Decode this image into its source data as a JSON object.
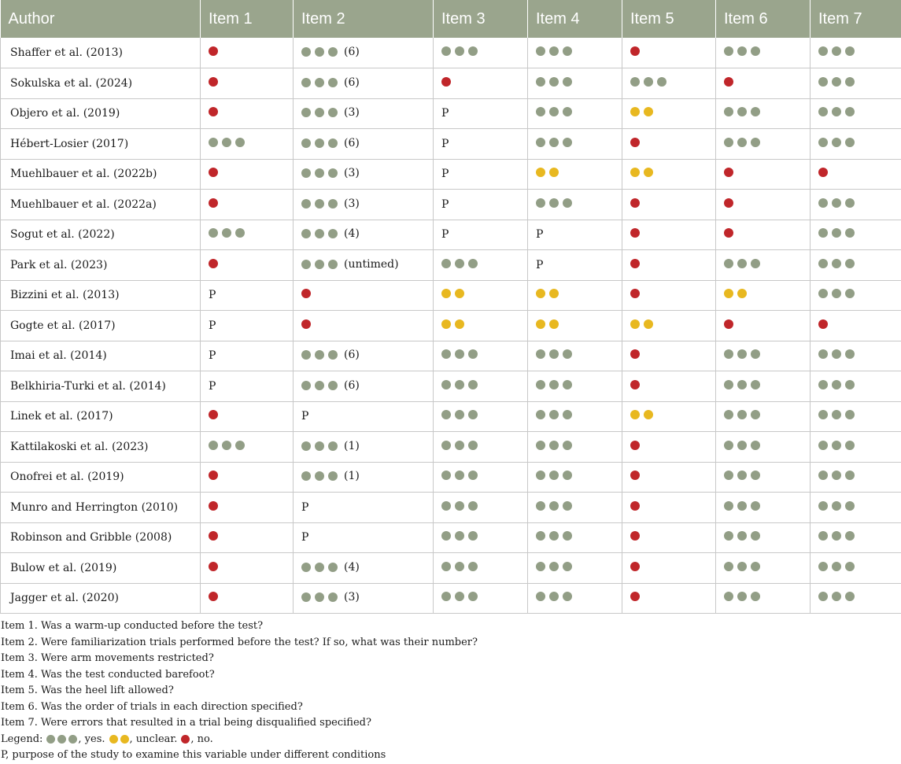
{
  "table": {
    "headers": [
      "Author",
      "Item 1",
      "Item 2",
      "Item 3",
      "Item 4",
      "Item 5",
      "Item 6",
      "Item 7"
    ],
    "rows": [
      {
        "author": "Shaffer et al. (2013)",
        "cells": [
          {
            "r": "no"
          },
          {
            "r": "yes",
            "note": "(6)"
          },
          {
            "r": "yes"
          },
          {
            "r": "yes"
          },
          {
            "r": "no"
          },
          {
            "r": "yes"
          },
          {
            "r": "yes"
          }
        ]
      },
      {
        "author": "Sokulska et al. (2024)",
        "cells": [
          {
            "r": "no"
          },
          {
            "r": "yes",
            "note": "(6)"
          },
          {
            "r": "no"
          },
          {
            "r": "yes"
          },
          {
            "r": "yes"
          },
          {
            "r": "no"
          },
          {
            "r": "yes"
          }
        ]
      },
      {
        "author": "Objero et al. (2019)",
        "cells": [
          {
            "r": "no"
          },
          {
            "r": "yes",
            "note": "(3)"
          },
          {
            "r": "P"
          },
          {
            "r": "yes"
          },
          {
            "r": "unclear"
          },
          {
            "r": "yes"
          },
          {
            "r": "yes"
          }
        ]
      },
      {
        "author": "Hébert-Losier (2017)",
        "cells": [
          {
            "r": "yes"
          },
          {
            "r": "yes",
            "note": "(6)"
          },
          {
            "r": "P"
          },
          {
            "r": "yes"
          },
          {
            "r": "no"
          },
          {
            "r": "yes"
          },
          {
            "r": "yes"
          }
        ]
      },
      {
        "author": "Muehlbauer et al. (2022b)",
        "cells": [
          {
            "r": "no"
          },
          {
            "r": "yes",
            "note": "(3)"
          },
          {
            "r": "P"
          },
          {
            "r": "unclear"
          },
          {
            "r": "unclear"
          },
          {
            "r": "no"
          },
          {
            "r": "no"
          }
        ]
      },
      {
        "author": "Muehlbauer et al. (2022a)",
        "cells": [
          {
            "r": "no"
          },
          {
            "r": "yes",
            "note": "(3)"
          },
          {
            "r": "P"
          },
          {
            "r": "yes"
          },
          {
            "r": "no"
          },
          {
            "r": "no"
          },
          {
            "r": "yes"
          }
        ]
      },
      {
        "author": "Sogut et al. (2022)",
        "cells": [
          {
            "r": "yes"
          },
          {
            "r": "yes",
            "note": "(4)"
          },
          {
            "r": "P"
          },
          {
            "r": "P"
          },
          {
            "r": "no"
          },
          {
            "r": "no"
          },
          {
            "r": "yes"
          }
        ]
      },
      {
        "author": "Park et al. (2023)",
        "cells": [
          {
            "r": "no"
          },
          {
            "r": "yes",
            "note": "(untimed)"
          },
          {
            "r": "yes"
          },
          {
            "r": "P"
          },
          {
            "r": "no"
          },
          {
            "r": "yes"
          },
          {
            "r": "yes"
          }
        ]
      },
      {
        "author": "Bizzini et al. (2013)",
        "cells": [
          {
            "r": "P"
          },
          {
            "r": "no"
          },
          {
            "r": "unclear"
          },
          {
            "r": "unclear"
          },
          {
            "r": "no"
          },
          {
            "r": "unclear"
          },
          {
            "r": "yes"
          }
        ]
      },
      {
        "author": "Gogte et al. (2017)",
        "cells": [
          {
            "r": "P"
          },
          {
            "r": "no"
          },
          {
            "r": "unclear"
          },
          {
            "r": "unclear"
          },
          {
            "r": "unclear"
          },
          {
            "r": "no"
          },
          {
            "r": "no"
          }
        ]
      },
      {
        "author": "Imai et al. (2014)",
        "cells": [
          {
            "r": "P"
          },
          {
            "r": "yes",
            "note": "(6)"
          },
          {
            "r": "yes"
          },
          {
            "r": "yes"
          },
          {
            "r": "no"
          },
          {
            "r": "yes"
          },
          {
            "r": "yes"
          }
        ]
      },
      {
        "author": "Belkhiria-Turki et al. (2014)",
        "cells": [
          {
            "r": "P"
          },
          {
            "r": "yes",
            "note": "(6)"
          },
          {
            "r": "yes"
          },
          {
            "r": "yes"
          },
          {
            "r": "no"
          },
          {
            "r": "yes"
          },
          {
            "r": "yes"
          }
        ]
      },
      {
        "author": "Linek et al. (2017)",
        "cells": [
          {
            "r": "no"
          },
          {
            "r": "P"
          },
          {
            "r": "yes"
          },
          {
            "r": "yes"
          },
          {
            "r": "unclear"
          },
          {
            "r": "yes"
          },
          {
            "r": "yes"
          }
        ]
      },
      {
        "author": "Kattilakoski et al. (2023)",
        "cells": [
          {
            "r": "yes"
          },
          {
            "r": "yes",
            "note": "(1)"
          },
          {
            "r": "yes"
          },
          {
            "r": "yes"
          },
          {
            "r": "no"
          },
          {
            "r": "yes"
          },
          {
            "r": "yes"
          }
        ]
      },
      {
        "author": "Onofrei et al. (2019)",
        "cells": [
          {
            "r": "no"
          },
          {
            "r": "yes",
            "note": "(1)"
          },
          {
            "r": "yes"
          },
          {
            "r": "yes"
          },
          {
            "r": "no"
          },
          {
            "r": "yes"
          },
          {
            "r": "yes"
          }
        ]
      },
      {
        "author": "Munro and Herrington (2010)",
        "cells": [
          {
            "r": "no"
          },
          {
            "r": "P"
          },
          {
            "r": "yes"
          },
          {
            "r": "yes"
          },
          {
            "r": "no"
          },
          {
            "r": "yes"
          },
          {
            "r": "yes"
          }
        ]
      },
      {
        "author": "Robinson and Gribble (2008)",
        "cells": [
          {
            "r": "no"
          },
          {
            "r": "P"
          },
          {
            "r": "yes"
          },
          {
            "r": "yes"
          },
          {
            "r": "no"
          },
          {
            "r": "yes"
          },
          {
            "r": "yes"
          }
        ]
      },
      {
        "author": "Bulow et al. (2019)",
        "cells": [
          {
            "r": "no"
          },
          {
            "r": "yes",
            "note": "(4)"
          },
          {
            "r": "yes"
          },
          {
            "r": "yes"
          },
          {
            "r": "no"
          },
          {
            "r": "yes"
          },
          {
            "r": "yes"
          }
        ]
      },
      {
        "author": "Jagger et al. (2020)",
        "cells": [
          {
            "r": "no"
          },
          {
            "r": "yes",
            "note": "(3)"
          },
          {
            "r": "yes"
          },
          {
            "r": "yes"
          },
          {
            "r": "no"
          },
          {
            "r": "yes"
          },
          {
            "r": "yes"
          }
        ]
      }
    ]
  },
  "footnotes": {
    "items": [
      "Item 1. Was a warm-up conducted before the test?",
      "Item 2. Were familiarization trials performed before the test? If so, what was their number?",
      "Item 3. Were arm movements restricted?",
      "Item 4. Was the test conducted barefoot?",
      "Item 5. Was the heel lift allowed?",
      "Item 6. Was the order of trials in each direction specified?",
      "Item 7. Were errors that resulted in a trial being disqualified specified?"
    ],
    "legend_label": "Legend:",
    "legend_yes": ", yes.",
    "legend_unclear": ", unclear.",
    "legend_no": ", no.",
    "p_note": "P, purpose of the study to examine this variable under different conditions"
  },
  "colors": {
    "header_bg": "#9aa58d",
    "yes": "#929e86",
    "unclear": "#e8b820",
    "no": "#c0262a"
  },
  "icons": {
    "yes": "three-green-dots",
    "unclear": "two-yellow-dots",
    "no": "one-red-dot"
  }
}
